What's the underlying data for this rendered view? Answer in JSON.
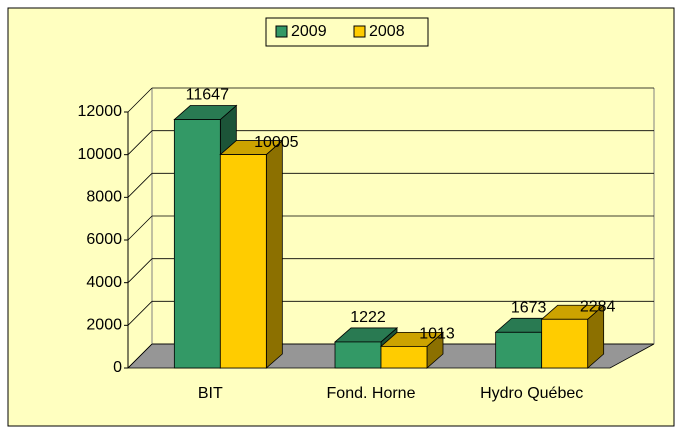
{
  "chart_data": {
    "type": "bar3d",
    "categories": [
      "BIT",
      "Fond. Horne",
      "Hydro Québec"
    ],
    "series": [
      {
        "name": "2009",
        "color": "#339966",
        "values": [
          11647,
          1222,
          1673
        ]
      },
      {
        "name": "2008",
        "color": "#ffcc00",
        "values": [
          10005,
          1013,
          2284
        ]
      }
    ],
    "ylim": [
      0,
      12000
    ],
    "yticks": [
      0,
      2000,
      4000,
      6000,
      8000,
      10000,
      12000
    ],
    "grid": true,
    "legend": "top"
  }
}
